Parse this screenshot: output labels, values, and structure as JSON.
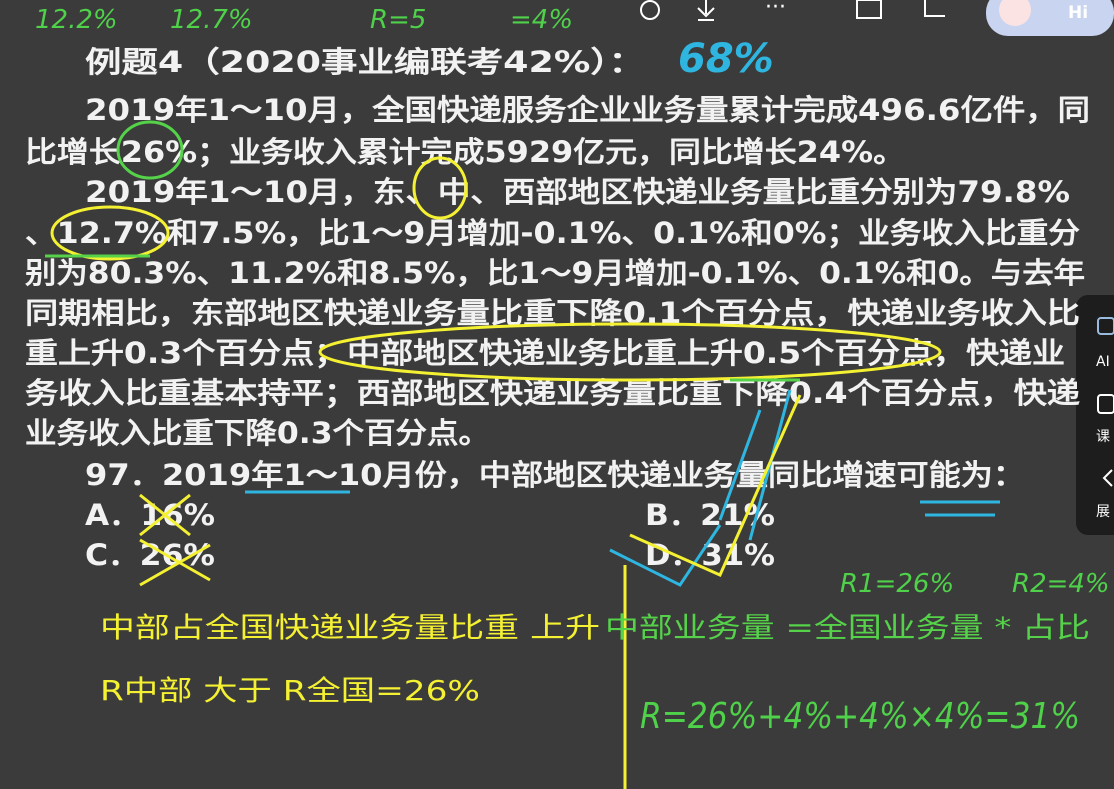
{
  "toolbar": {
    "greeting": "Hi"
  },
  "side_panel": {
    "items": [
      "AI",
      "课",
      "展"
    ]
  },
  "problem": {
    "title": "例题4（2020事业编联考42%）：",
    "lines": [
      "2019年1～10月，全国快递服务企业业务量累计完成496.6亿件，同",
      "比增长26%；业务收入累计完成5929亿元，同比增长24%。",
      "2019年1～10月，东、中、西部地区快递业务量比重分别为79.8%",
      "、12.7%和7.5%，比1～9月增加-0.1%、0.1%和0%；业务收入比重分",
      "别为80.3%、11.2%和8.5%，比1～9月增加-0.1%、0.1%和0。与去年",
      "同期相比，东部地区快递业务量比重下降0.1个百分点，快递业务收入比",
      "重上升0.3个百分点；中部地区快递业务比重上升0.5个百分点，快递业",
      "务收入比重基本持平；西部地区快递业务量比重下降0.4个百分点，快递",
      "业务收入比重下降0.3个百分点。"
    ],
    "question": "97．2019年1～10月份，中部地区快递业务量同比增速可能为：",
    "options": [
      "A．16%",
      "B．21%",
      "C．26%",
      "D．31%"
    ]
  },
  "notes": {
    "line1_yellow": "中部占全国快递业务量比重 上升",
    "line1_green": "中部业务量 =全国业务量 * 占比",
    "line2": "R中部  大于  R全国=26%"
  },
  "handwriting": {
    "top": [
      "12.2%",
      "12.7%",
      "R=5",
      "=4%"
    ],
    "answer_rate": "68%",
    "r1": "R1=26%",
    "r2": "R2=4%",
    "formula": "R=26%+4%+4%×4%=31%"
  }
}
